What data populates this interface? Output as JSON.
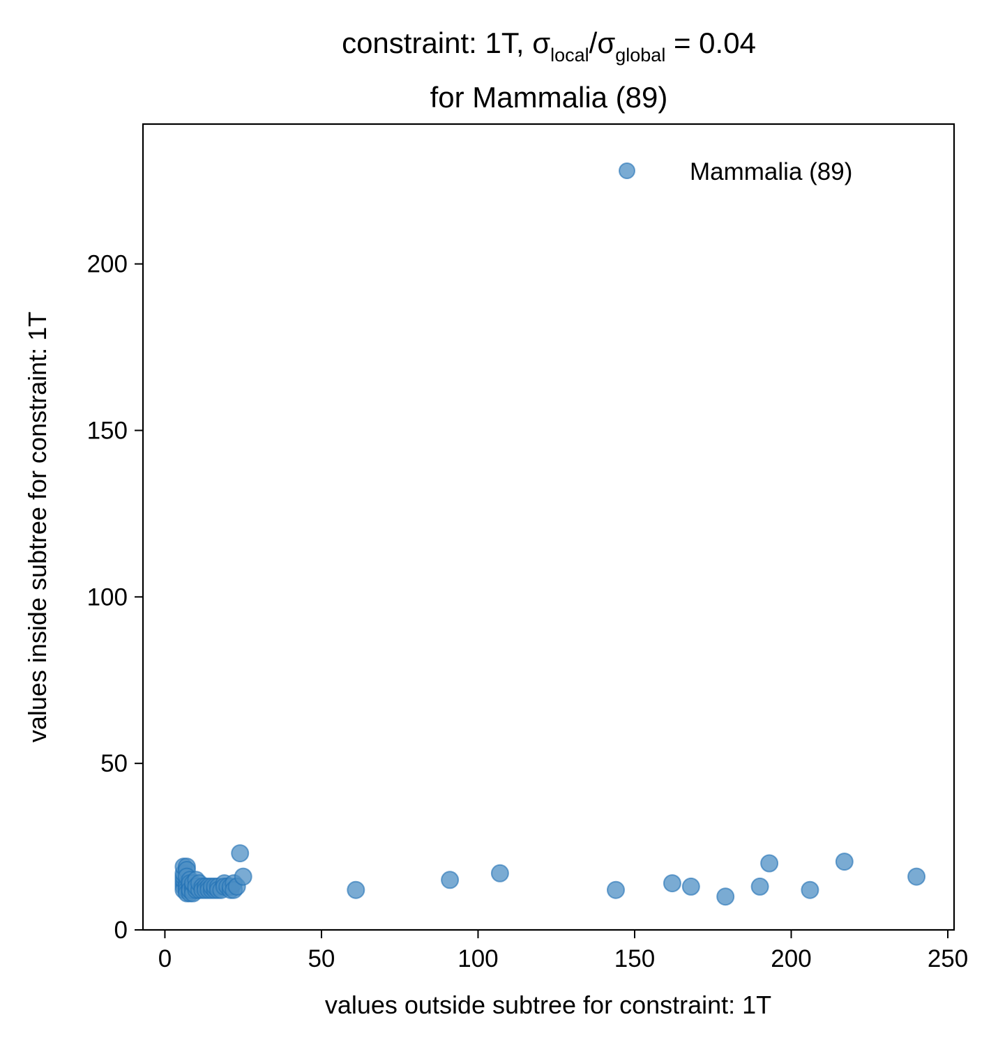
{
  "chart_data": {
    "type": "scatter",
    "title_line1": {
      "prefix": "constraint: 1T, σ",
      "sub1": "local",
      "mid": "/σ",
      "sub2": "global",
      "suffix": " =  0.04"
    },
    "title_line2": "for Mammalia (89)",
    "xlabel": "values outside subtree for constraint: 1T",
    "ylabel": "values inside subtree for constraint: 1T",
    "xlim": [
      -7,
      252
    ],
    "ylim": [
      0,
      242
    ],
    "xticks": [
      0,
      50,
      100,
      150,
      200,
      250
    ],
    "xtick_labels": [
      "0",
      "50",
      "100",
      "150",
      "200",
      "250"
    ],
    "yticks": [
      0,
      50,
      100,
      150,
      200
    ],
    "ytick_labels": [
      "0",
      "50",
      "100",
      "150",
      "200"
    ],
    "grid": false,
    "legend": {
      "position": "top-right",
      "entries": [
        "Mammalia (89)"
      ]
    },
    "marker_color": "#4d8fc4",
    "marker_edge_color": "#1f6fb4",
    "marker_opacity": 0.75,
    "series": [
      {
        "name": "Mammalia (89)",
        "points": [
          [
            6,
            14
          ],
          [
            6,
            13
          ],
          [
            6,
            12
          ],
          [
            6,
            15
          ],
          [
            6,
            16
          ],
          [
            6,
            17
          ],
          [
            6,
            19
          ],
          [
            7,
            19
          ],
          [
            7,
            18
          ],
          [
            7,
            14
          ],
          [
            7,
            13
          ],
          [
            7,
            12
          ],
          [
            7,
            11
          ],
          [
            7,
            16
          ],
          [
            8,
            15
          ],
          [
            8,
            13
          ],
          [
            8,
            12
          ],
          [
            8,
            14
          ],
          [
            8,
            11
          ],
          [
            8,
            12
          ],
          [
            9,
            13
          ],
          [
            9,
            12
          ],
          [
            9,
            11
          ],
          [
            9,
            14
          ],
          [
            10,
            15
          ],
          [
            10,
            12
          ],
          [
            10,
            13
          ],
          [
            11,
            12
          ],
          [
            11,
            14
          ],
          [
            12,
            13
          ],
          [
            12,
            12
          ],
          [
            13,
            13
          ],
          [
            13,
            12
          ],
          [
            14,
            13
          ],
          [
            14,
            12
          ],
          [
            15,
            12
          ],
          [
            15,
            13
          ],
          [
            16,
            12
          ],
          [
            16,
            13
          ],
          [
            17,
            13
          ],
          [
            17,
            12
          ],
          [
            18,
            12
          ],
          [
            19,
            14
          ],
          [
            19,
            13
          ],
          [
            20,
            13
          ],
          [
            21,
            12
          ],
          [
            21,
            13
          ],
          [
            22,
            14
          ],
          [
            22,
            12
          ],
          [
            23,
            13
          ],
          [
            24,
            23
          ],
          [
            25,
            16
          ],
          [
            61,
            12
          ],
          [
            91,
            15
          ],
          [
            107,
            17
          ],
          [
            144,
            12
          ],
          [
            162,
            14
          ],
          [
            168,
            13
          ],
          [
            179,
            10
          ],
          [
            190,
            13
          ],
          [
            193,
            20
          ],
          [
            206,
            12
          ],
          [
            217,
            20.5
          ],
          [
            240,
            16
          ]
        ]
      }
    ]
  }
}
